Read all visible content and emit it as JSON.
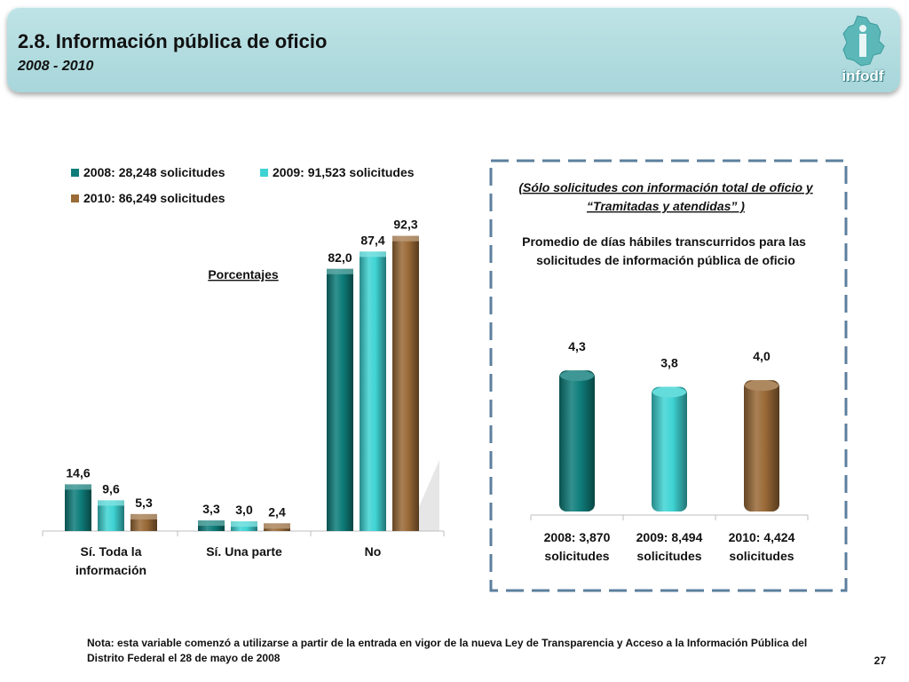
{
  "header": {
    "title": "2.8. Información pública de oficio",
    "subtitle": "2008 - 2010",
    "logo_text": "infodf",
    "logo_icon": "mexico-city-map-icon"
  },
  "colors": {
    "teal": "#0e7d7a",
    "cyan": "#3fd3d3",
    "brown": "#9a6a37"
  },
  "chart_data": [
    {
      "type": "bar",
      "title": "Porcentajes",
      "legend_position": "top-left",
      "categories": [
        "Sí. Toda la información",
        "Sí. Una parte",
        "No"
      ],
      "series": [
        {
          "name": "2008: 28,248 solicitudes",
          "values": [
            14.6,
            3.3,
            82.0
          ],
          "labels": [
            "14,6",
            "3,3",
            "82,0"
          ]
        },
        {
          "name": "2009: 91,523 solicitudes",
          "values": [
            9.6,
            3.0,
            87.4
          ],
          "labels": [
            "9,6",
            "3,0",
            "87,4"
          ]
        },
        {
          "name": "2010: 86,249 solicitudes",
          "values": [
            5.3,
            2.4,
            92.3
          ],
          "labels": [
            "5,3",
            "2,4",
            "92,3"
          ]
        }
      ],
      "ylim": [
        0,
        100
      ],
      "grid": false
    },
    {
      "type": "bar",
      "subtitle": "(Sólo solicitudes con información total de oficio y “Tramitadas y atendidas” )",
      "title": "Promedio de días hábiles transcurridos  para las solicitudes de información pública de oficio",
      "categories": [
        "2008: 3,870 solicitudes",
        "2009: 8,494 solicitudes",
        "2010: 4,424 solicitudes"
      ],
      "values": [
        4.3,
        3.8,
        4.0
      ],
      "labels": [
        "4,3",
        "3,8",
        "4,0"
      ],
      "ylim": [
        0,
        4.6
      ],
      "grid": false
    }
  ],
  "footer": {
    "note": "Nota: esta variable comenzó a utilizarse a partir de la entrada en vigor de la nueva Ley de Transparencia y Acceso a la Información Pública del Distrito Federal el 28 de mayo de 2008",
    "page_number": "27"
  }
}
